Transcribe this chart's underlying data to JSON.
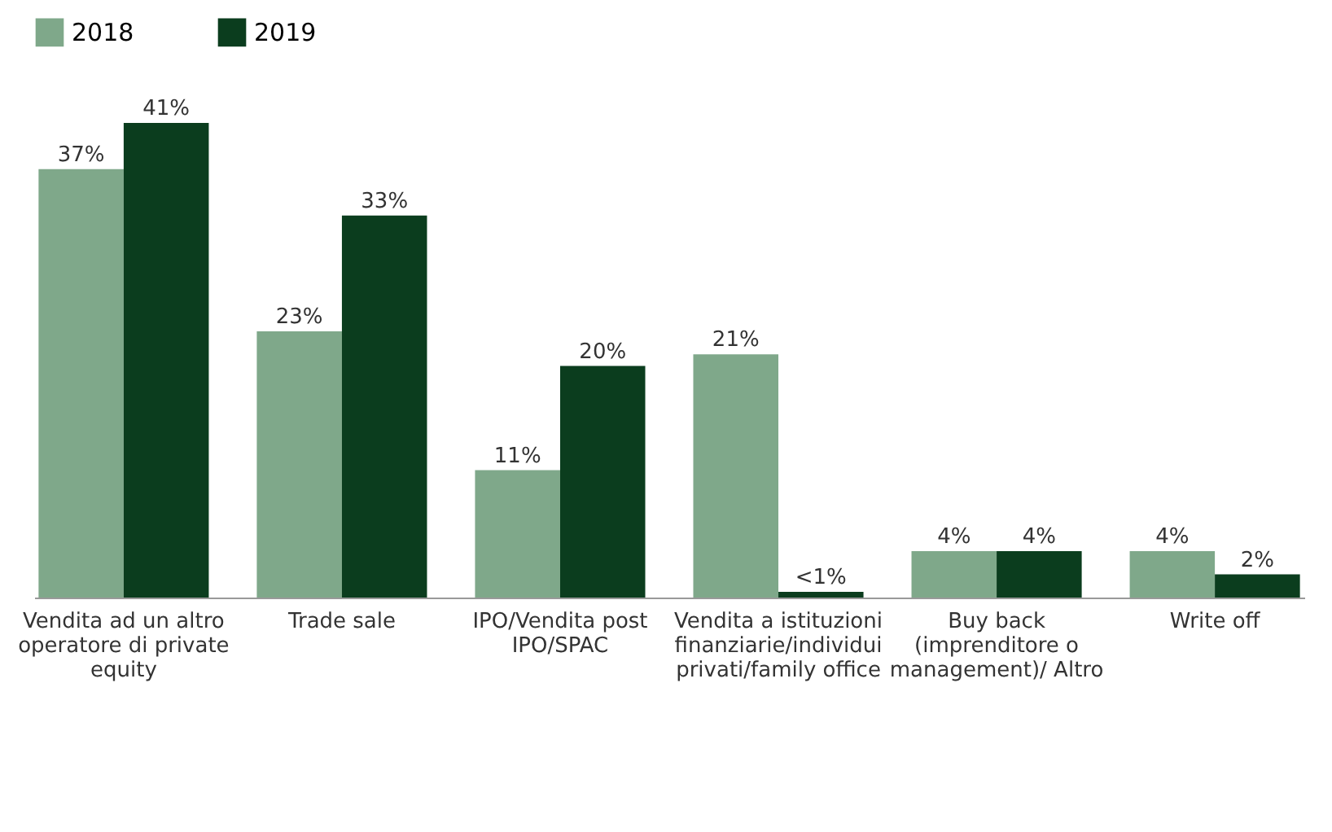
{
  "chart_data": {
    "type": "bar",
    "categories": [
      "Vendita ad un altro operatore di private equity",
      "Trade sale",
      "IPO/Vendita post IPO/SPAC",
      "Vendita a istituzioni finanziarie/individui privati/family office",
      "Buy back (imprenditore o management)/ Altro",
      "Write off"
    ],
    "series": [
      {
        "name": "2018",
        "color": "#7fa88a",
        "values": [
          37,
          23,
          11,
          21,
          4,
          4
        ],
        "value_labels": [
          "37%",
          "23%",
          "11%",
          "21%",
          "4%",
          "4%"
        ]
      },
      {
        "name": "2019",
        "color": "#0b3d1e",
        "values": [
          41,
          33,
          20,
          0.5,
          4,
          2
        ],
        "value_labels": [
          "41%",
          "33%",
          "20%",
          "<1%",
          "4%",
          "2%"
        ]
      }
    ],
    "legend": "top"
  }
}
